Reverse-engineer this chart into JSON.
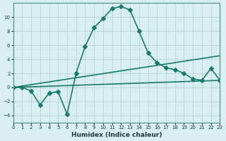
{
  "xlabel": "Humidex (Indice chaleur)",
  "background_color": "#d8eef0",
  "grid_color": "#b0cfd4",
  "line_color": "#1a7a6e",
  "xlim": [
    0,
    23
  ],
  "ylim": [
    -5,
    12
  ],
  "yticks": [
    -4,
    -2,
    0,
    2,
    4,
    6,
    8,
    10
  ],
  "xticks": [
    0,
    1,
    2,
    3,
    4,
    5,
    6,
    7,
    8,
    9,
    10,
    11,
    12,
    13,
    14,
    15,
    16,
    17,
    18,
    19,
    20,
    21,
    22,
    23
  ],
  "curve1_x": [
    0,
    1,
    2,
    3,
    4,
    5,
    6,
    7,
    8,
    9,
    10,
    11,
    12,
    13,
    14,
    15,
    16,
    17,
    18,
    19,
    20,
    21,
    22,
    23
  ],
  "curve1_y": [
    0,
    0,
    -0.5,
    -2.5,
    -0.8,
    -0.6,
    -3.8,
    2.0,
    5.8,
    8.5,
    9.8,
    11.2,
    11.5,
    11.0,
    8.0,
    4.9,
    3.5,
    2.8,
    2.5,
    2.0,
    1.2,
    1.0,
    2.7,
    1.0
  ],
  "line2_x": [
    0,
    23
  ],
  "line2_y": [
    0,
    1.0
  ],
  "line3_x": [
    0,
    23
  ],
  "line3_y": [
    0,
    4.5
  ],
  "marker": "D",
  "markersize": 3.0,
  "linewidth": 1.2
}
